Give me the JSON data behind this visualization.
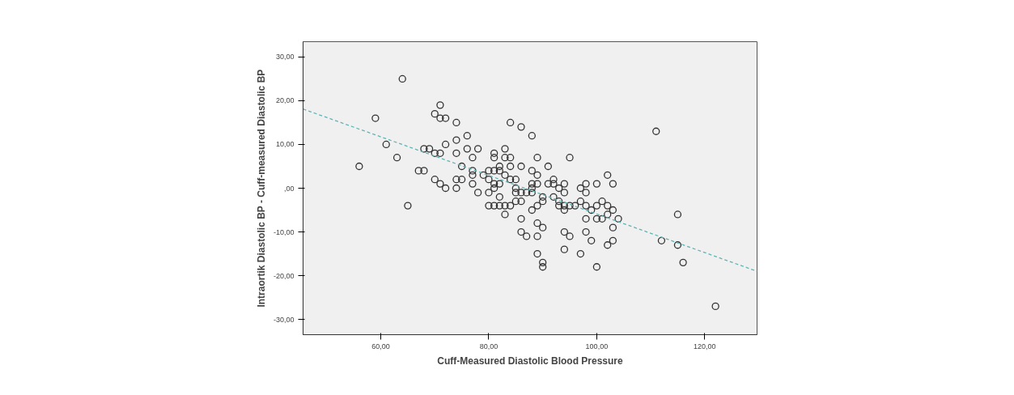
{
  "chart_data": {
    "type": "scatter",
    "xlabel": "Cuff-Measured Diastolic Blood Pressure",
    "ylabel": "Intraortik Diastolic BP - Cuff-measured Diastolic BP",
    "xlim": [
      45.6,
      129.7
    ],
    "ylim": [
      -33.5,
      33.5
    ],
    "xticks": [
      {
        "value": 60,
        "label": "60,00"
      },
      {
        "value": 80,
        "label": "80,00"
      },
      {
        "value": 100,
        "label": "100,00"
      },
      {
        "value": 120,
        "label": "120,00"
      }
    ],
    "yticks": [
      {
        "value": -30,
        "label": "-30,00"
      },
      {
        "value": -20,
        "label": "-20,00"
      },
      {
        "value": -10,
        "label": "-10,00"
      },
      {
        "value": 0,
        "label": ",00"
      },
      {
        "value": 10,
        "label": "10,00"
      },
      {
        "value": 20,
        "label": "20,00"
      },
      {
        "value": 30,
        "label": "30,00"
      }
    ],
    "grid": false,
    "marker": "circle",
    "series": [
      {
        "color": "#333333",
        "x": [
          64,
          59,
          61,
          63,
          56,
          71,
          70,
          71,
          72,
          74,
          74,
          72,
          76,
          68,
          69,
          70,
          71,
          74,
          76,
          78,
          77,
          75,
          67,
          68,
          77,
          77,
          79,
          80,
          81,
          82,
          80,
          81,
          81,
          82,
          70,
          74,
          75,
          77,
          71,
          81,
          82,
          72,
          74,
          78,
          80,
          81,
          82,
          65,
          80,
          81,
          82,
          83,
          84,
          83,
          84,
          86,
          88,
          111,
          83,
          83,
          84,
          89,
          95,
          84,
          86,
          91,
          88,
          89,
          102,
          83,
          84,
          85,
          88,
          89,
          91,
          92,
          94,
          92,
          98,
          100,
          103,
          85,
          88,
          93,
          97,
          85,
          86,
          87,
          88,
          94,
          98,
          90,
          92,
          85,
          86,
          90,
          93,
          97,
          101,
          89,
          93,
          94,
          95,
          96,
          98,
          100,
          102,
          88,
          94,
          99,
          103,
          102,
          115,
          86,
          98,
          100,
          101,
          104,
          89,
          90,
          103,
          86,
          94,
          98,
          87,
          89,
          95,
          99,
          103,
          112,
          102,
          115,
          94,
          89,
          97,
          90,
          116,
          90,
          100,
          122
        ],
        "values": [
          25,
          16,
          10,
          7,
          5,
          19,
          17,
          16,
          16,
          15,
          11,
          10,
          12,
          9,
          9,
          8,
          8,
          8,
          9,
          9,
          7,
          5,
          4,
          4,
          4,
          3,
          3,
          4,
          4,
          4,
          2,
          8,
          7,
          5,
          2,
          2,
          2,
          1,
          1,
          1,
          1,
          0,
          0,
          -1,
          -1,
          0,
          -2,
          -4,
          -4,
          -4,
          -4,
          -4,
          -4,
          -6,
          15,
          14,
          12,
          13,
          9,
          7,
          7,
          7,
          7,
          5,
          5,
          5,
          4,
          3,
          3,
          3,
          2,
          2,
          1,
          1,
          1,
          1,
          1,
          2,
          1,
          1,
          1,
          0,
          0,
          0,
          0,
          -1,
          -1,
          -1,
          -1,
          -1,
          -1,
          -2,
          -2,
          -3,
          -3,
          -3,
          -3,
          -3,
          -3,
          -4,
          -4,
          -4,
          -4,
          -4,
          -4,
          -4,
          -4,
          -5,
          -5,
          -5,
          -5,
          -6,
          -6,
          -7,
          -7,
          -7,
          -7,
          -7,
          -8,
          -9,
          -9,
          -10,
          -10,
          -10,
          -11,
          -11,
          -11,
          -12,
          -12,
          -12,
          -13,
          -13,
          -14,
          -15,
          -15,
          -17,
          -17,
          -18,
          -18,
          -27
        ]
      },
      {
        "type": "line",
        "color": "#5fb4b4",
        "line_style": "dashed",
        "marker": "none",
        "x": [
          45.6,
          129.7
        ],
        "values": [
          18.1,
          -19.0
        ]
      }
    ]
  }
}
